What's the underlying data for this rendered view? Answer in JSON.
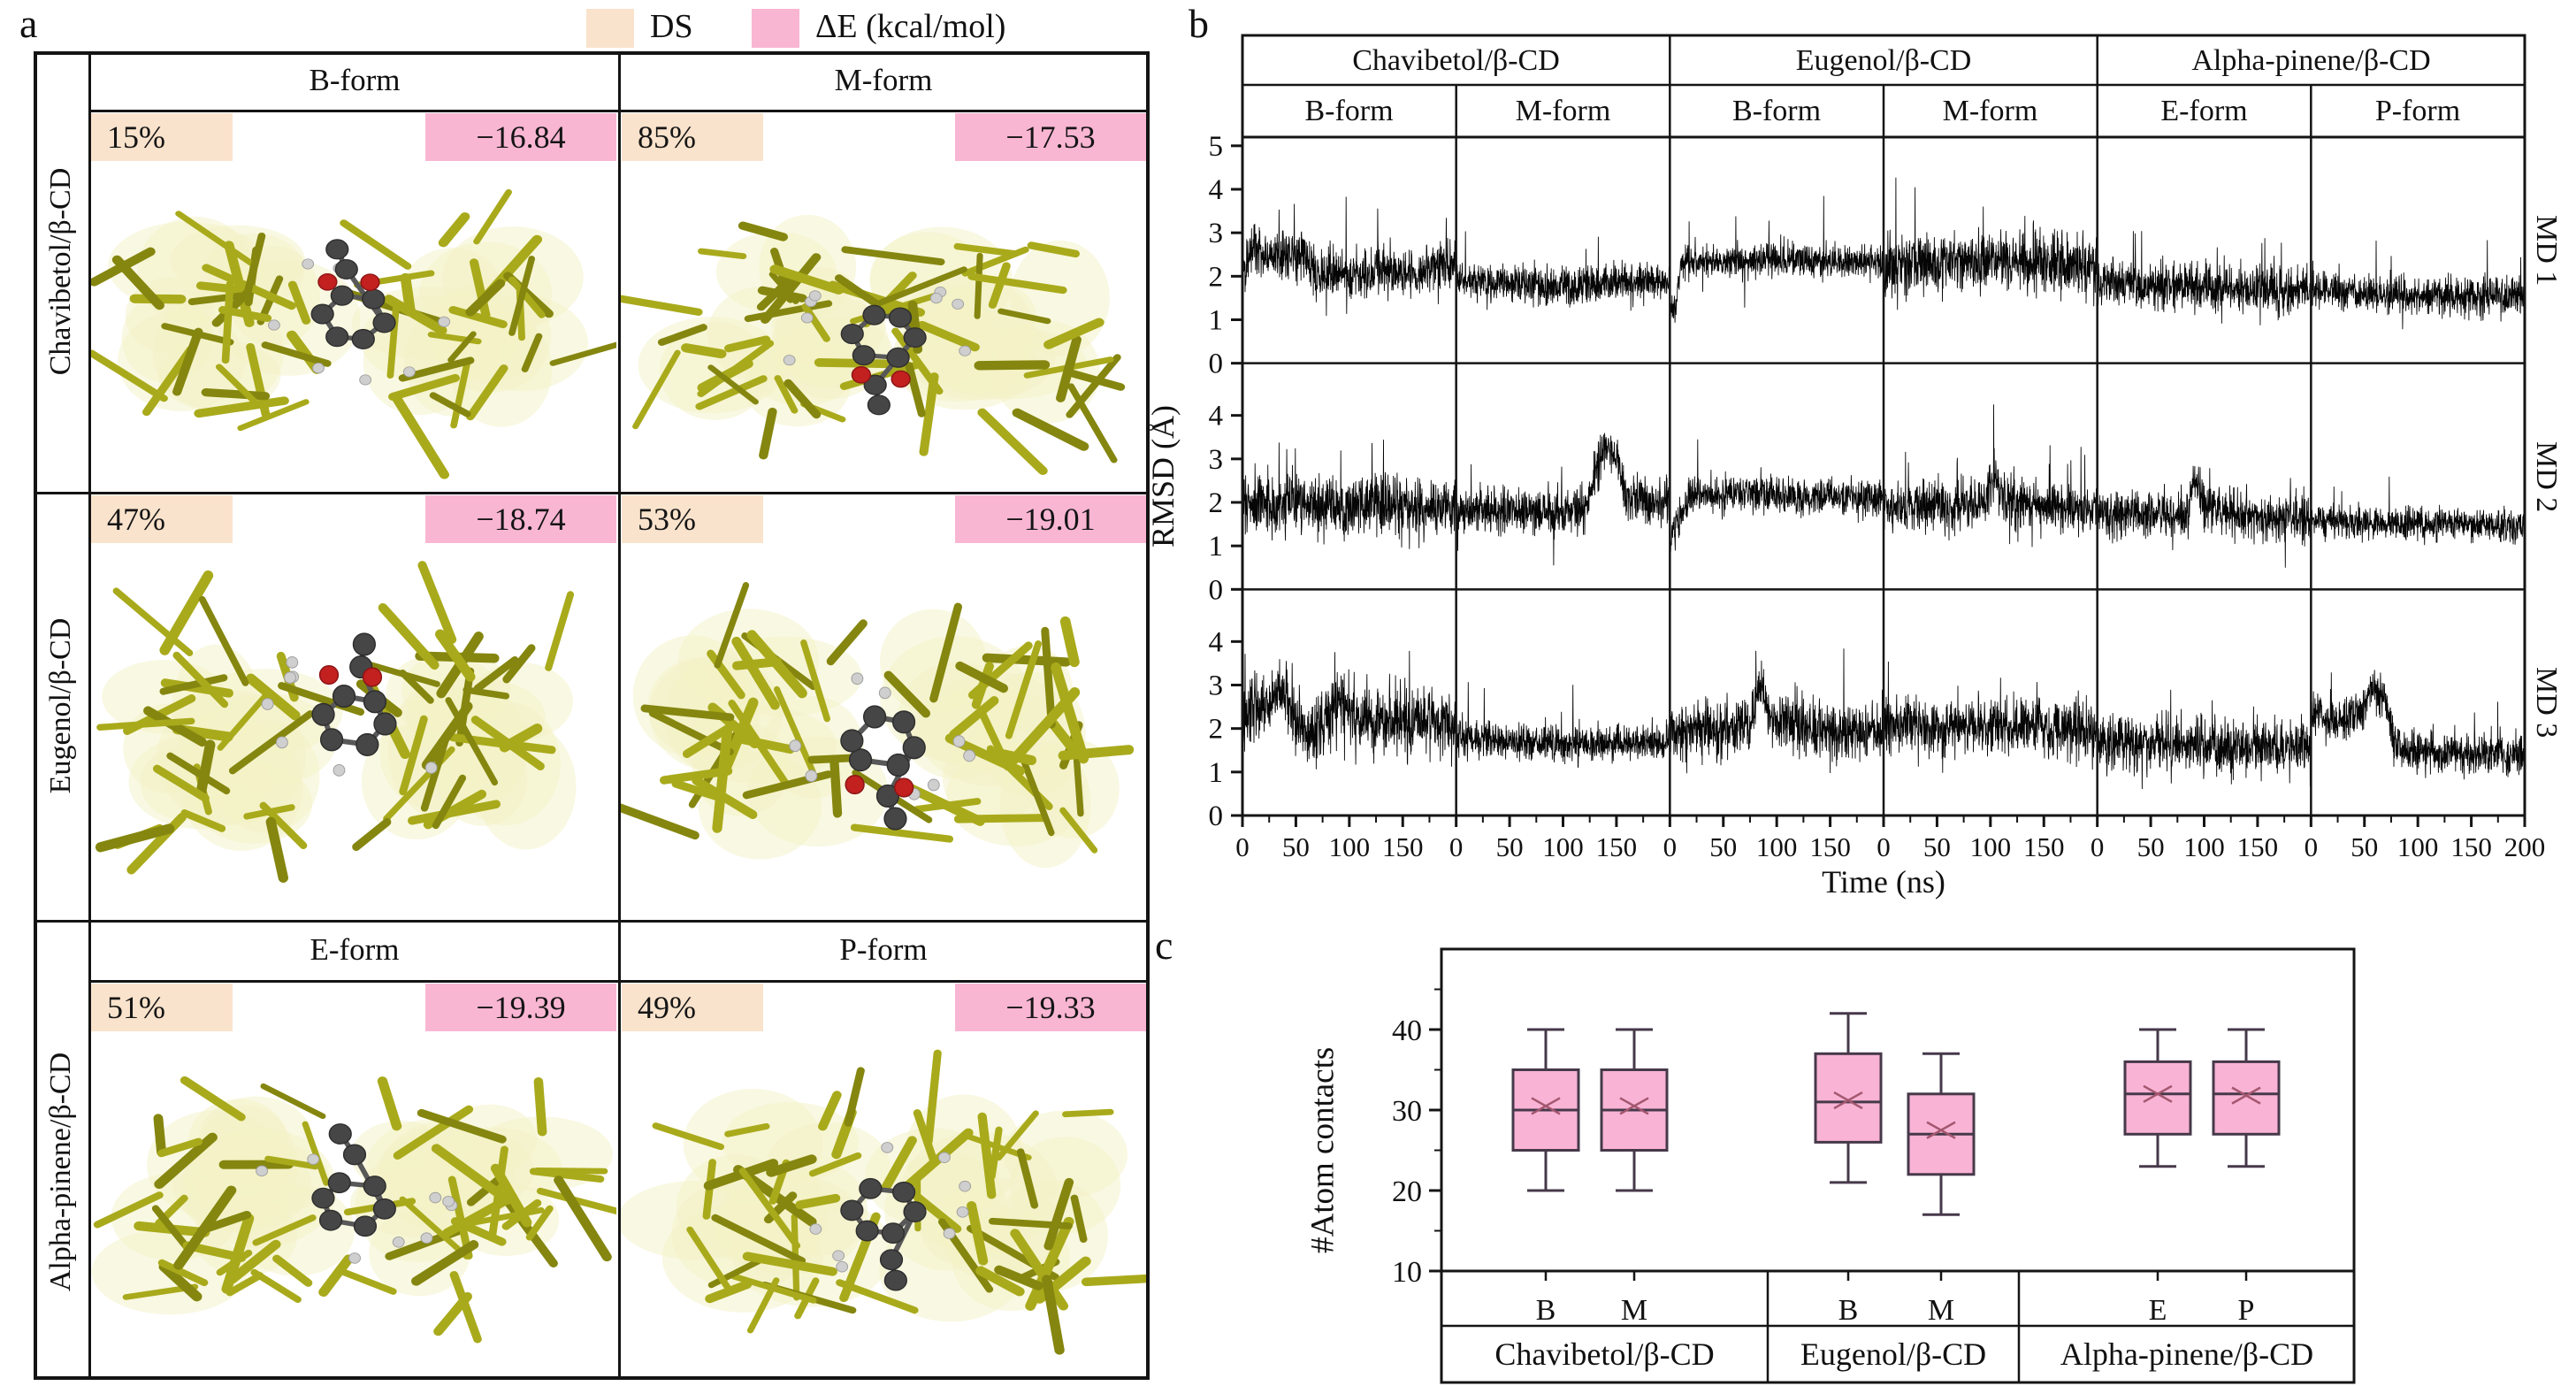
{
  "figure": {
    "panel_a_label": "a",
    "panel_b_label": "b",
    "panel_c_label": "c"
  },
  "legend": {
    "ds_label": "DS",
    "de_label": "ΔE (kcal/mol)",
    "ds_color": "#fae3cc",
    "de_color": "#f9b6d3",
    "box_fill": "#f9b3d5",
    "box_edge": "#46394a",
    "mean_marker_color": "#a3576e"
  },
  "panel_a": {
    "form_headers_top": [
      "B-form",
      "M-form"
    ],
    "form_headers_bottom": [
      "E-form",
      "P-form"
    ],
    "rows": [
      {
        "complex": "Chavibetol/β-CD",
        "cells": [
          {
            "ds": "15%",
            "de": "−16.84"
          },
          {
            "ds": "85%",
            "de": "−17.53"
          }
        ]
      },
      {
        "complex": "Eugenol/β-CD",
        "cells": [
          {
            "ds": "47%",
            "de": "−18.74"
          },
          {
            "ds": "53%",
            "de": "−19.01"
          }
        ]
      },
      {
        "complex": "Alpha-pinene/β-CD",
        "cells": [
          {
            "ds": "51%",
            "de": "−19.39"
          },
          {
            "ds": "49%",
            "de": "−19.33"
          }
        ]
      }
    ]
  },
  "panel_b": {
    "groups": [
      "Chavibetol/β-CD",
      "Eugenol/β-CD",
      "Alpha-pinene/β-CD"
    ],
    "forms": [
      "B-form",
      "M-form",
      "B-form",
      "M-form",
      "E-form",
      "P-form"
    ],
    "md_labels": [
      "MD 1",
      "MD 2",
      "MD 3"
    ],
    "ylabel": "RMSD (Å)",
    "xlabel": "Time (ns)"
  },
  "panel_c": {
    "ylabel": "#Atom contacts"
  },
  "chart_data": [
    {
      "type": "line",
      "title": "RMSD of guest/β-CD complexes over MD simulations",
      "xlabel": "Time (ns)",
      "ylabel": "RMSD (Å)",
      "x_range": [
        0,
        200
      ],
      "x_ticks": [
        0,
        50,
        100,
        150
      ],
      "x_end_tick": 200,
      "x_minor_ticks": [
        25,
        75,
        125,
        175
      ],
      "y_range": [
        0,
        5
      ],
      "y_ticks_per_row": [
        [
          0,
          1,
          2,
          3,
          4,
          5
        ],
        [
          0,
          1,
          2,
          3,
          4
        ],
        [
          0,
          1,
          2,
          3,
          4
        ]
      ],
      "facet_rows": [
        "MD 1",
        "MD 2",
        "MD 3"
      ],
      "facet_column_groups": [
        "Chavibetol/β-CD",
        "Eugenol/β-CD",
        "Alpha-pinene/β-CD"
      ],
      "facet_column_forms": [
        "B-form",
        "M-form",
        "B-form",
        "M-form",
        "E-form",
        "P-form"
      ],
      "grid": false,
      "series_note": "noisy black traces; mean_profile = [time_ns, mean_rmsd] control points",
      "series": [
        {
          "row": "MD 1",
          "column": "Chavibetol B-form",
          "amp": 0.24,
          "spike": 0.012,
          "mean_profile": [
            [
              0,
              2.1
            ],
            [
              8,
              2.6
            ],
            [
              30,
              2.45
            ],
            [
              55,
              2.5
            ],
            [
              70,
              2.05
            ],
            [
              100,
              2.0
            ],
            [
              130,
              2.15
            ],
            [
              165,
              2.1
            ],
            [
              185,
              2.35
            ],
            [
              200,
              2.2
            ]
          ]
        },
        {
          "row": "MD 1",
          "column": "Chavibetol M-form",
          "amp": 0.19,
          "spike": 0.006,
          "mean_profile": [
            [
              0,
              1.9
            ],
            [
              40,
              1.85
            ],
            [
              100,
              1.8
            ],
            [
              160,
              1.9
            ],
            [
              200,
              1.85
            ]
          ]
        },
        {
          "row": "MD 1",
          "column": "Eugenol B-form",
          "amp": 0.16,
          "spike": 0.005,
          "mean_profile": [
            [
              0,
              1.1
            ],
            [
              6,
              1.3
            ],
            [
              10,
              2.3
            ],
            [
              60,
              2.35
            ],
            [
              120,
              2.4
            ],
            [
              200,
              2.3
            ]
          ]
        },
        {
          "row": "MD 1",
          "column": "Eugenol M-form",
          "amp": 0.3,
          "spike": 0.02,
          "mean_profile": [
            [
              0,
              2.2
            ],
            [
              30,
              2.35
            ],
            [
              60,
              2.3
            ],
            [
              90,
              2.4
            ],
            [
              120,
              2.3
            ],
            [
              150,
              2.35
            ],
            [
              200,
              2.25
            ]
          ]
        },
        {
          "row": "MD 1",
          "column": "Alpha-pinene E-form",
          "amp": 0.22,
          "spike": 0.015,
          "mean_profile": [
            [
              0,
              1.9
            ],
            [
              30,
              1.8
            ],
            [
              80,
              1.75
            ],
            [
              130,
              1.7
            ],
            [
              200,
              1.65
            ]
          ]
        },
        {
          "row": "MD 1",
          "column": "Alpha-pinene P-form",
          "amp": 0.18,
          "spike": 0.006,
          "mean_profile": [
            [
              0,
              1.7
            ],
            [
              50,
              1.6
            ],
            [
              120,
              1.55
            ],
            [
              200,
              1.55
            ]
          ]
        },
        {
          "row": "MD 2",
          "column": "Chavibetol B-form",
          "amp": 0.3,
          "spike": 0.02,
          "mean_profile": [
            [
              0,
              2.0
            ],
            [
              20,
              1.9
            ],
            [
              50,
              1.95
            ],
            [
              80,
              1.9
            ],
            [
              110,
              1.95
            ],
            [
              150,
              1.9
            ],
            [
              200,
              1.9
            ]
          ]
        },
        {
          "row": "MD 2",
          "column": "Chavibetol M-form",
          "amp": 0.22,
          "spike": 0.006,
          "mean_profile": [
            [
              0,
              1.85
            ],
            [
              100,
              1.8
            ],
            [
              120,
              1.85
            ],
            [
              128,
              2.6
            ],
            [
              138,
              3.2
            ],
            [
              150,
              3.15
            ],
            [
              158,
              2.2
            ],
            [
              170,
              2.05
            ],
            [
              200,
              2.0
            ]
          ]
        },
        {
          "row": "MD 2",
          "column": "Eugenol B-form",
          "amp": 0.18,
          "spike": 0.006,
          "mean_profile": [
            [
              0,
              1.2
            ],
            [
              8,
              1.6
            ],
            [
              18,
              2.15
            ],
            [
              80,
              2.2
            ],
            [
              140,
              2.15
            ],
            [
              200,
              2.1
            ]
          ]
        },
        {
          "row": "MD 2",
          "column": "Eugenol M-form",
          "amp": 0.25,
          "spike": 0.015,
          "mean_profile": [
            [
              0,
              1.9
            ],
            [
              60,
              1.85
            ],
            [
              95,
              2.0
            ],
            [
              105,
              2.6
            ],
            [
              112,
              2.0
            ],
            [
              150,
              1.9
            ],
            [
              200,
              1.85
            ]
          ]
        },
        {
          "row": "MD 2",
          "column": "Alpha-pinene E-form",
          "amp": 0.22,
          "spike": 0.01,
          "mean_profile": [
            [
              0,
              1.75
            ],
            [
              60,
              1.7
            ],
            [
              85,
              1.8
            ],
            [
              92,
              2.7
            ],
            [
              100,
              1.9
            ],
            [
              140,
              1.7
            ],
            [
              200,
              1.65
            ]
          ]
        },
        {
          "row": "MD 2",
          "column": "Alpha-pinene P-form",
          "amp": 0.16,
          "spike": 0.005,
          "mean_profile": [
            [
              0,
              1.6
            ],
            [
              60,
              1.5
            ],
            [
              130,
              1.5
            ],
            [
              200,
              1.45
            ]
          ]
        },
        {
          "row": "MD 3",
          "column": "Chavibetol B-form",
          "amp": 0.32,
          "spike": 0.02,
          "mean_profile": [
            [
              0,
              2.3
            ],
            [
              25,
              2.4
            ],
            [
              35,
              3.0
            ],
            [
              45,
              2.5
            ],
            [
              60,
              1.9
            ],
            [
              75,
              2.1
            ],
            [
              95,
              2.7
            ],
            [
              105,
              2.2
            ],
            [
              140,
              2.15
            ],
            [
              200,
              2.1
            ]
          ]
        },
        {
          "row": "MD 3",
          "column": "Chavibetol M-form",
          "amp": 0.18,
          "spike": 0.005,
          "mean_profile": [
            [
              0,
              1.8
            ],
            [
              60,
              1.7
            ],
            [
              130,
              1.65
            ],
            [
              200,
              1.7
            ]
          ]
        },
        {
          "row": "MD 3",
          "column": "Eugenol B-form",
          "amp": 0.28,
          "spike": 0.015,
          "mean_profile": [
            [
              0,
              1.9
            ],
            [
              40,
              1.95
            ],
            [
              75,
              2.1
            ],
            [
              85,
              3.0
            ],
            [
              95,
              2.2
            ],
            [
              130,
              1.95
            ],
            [
              200,
              1.9
            ]
          ]
        },
        {
          "row": "MD 3",
          "column": "Eugenol M-form",
          "amp": 0.28,
          "spike": 0.012,
          "mean_profile": [
            [
              0,
              2.1
            ],
            [
              50,
              2.0
            ],
            [
              100,
              2.05
            ],
            [
              150,
              2.0
            ],
            [
              200,
              1.95
            ]
          ]
        },
        {
          "row": "MD 3",
          "column": "Alpha-pinene E-form",
          "amp": 0.26,
          "spike": 0.012,
          "mean_profile": [
            [
              0,
              1.7
            ],
            [
              60,
              1.6
            ],
            [
              120,
              1.6
            ],
            [
              200,
              1.55
            ]
          ]
        },
        {
          "row": "MD 3",
          "column": "Alpha-pinene P-form",
          "amp": 0.2,
          "spike": 0.006,
          "mean_profile": [
            [
              0,
              2.3
            ],
            [
              30,
              2.2
            ],
            [
              48,
              2.4
            ],
            [
              58,
              2.9
            ],
            [
              68,
              2.7
            ],
            [
              78,
              1.8
            ],
            [
              90,
              1.5
            ],
            [
              140,
              1.45
            ],
            [
              200,
              1.4
            ]
          ]
        }
      ]
    },
    {
      "type": "box",
      "title": "#Atom contacts per complex form",
      "ylabel": "#Atom contacts",
      "y_range": [
        10,
        50
      ],
      "y_ticks": [
        10,
        20,
        30,
        40
      ],
      "y_minor_ticks": [
        15,
        25,
        35,
        45
      ],
      "groups": [
        "Chavibetol/β-CD",
        "Eugenol/β-CD",
        "Alpha-pinene/β-CD"
      ],
      "boxes": [
        {
          "group": "Chavibetol/β-CD",
          "label": "B",
          "whisker_low": 20,
          "q1": 25,
          "median": 30,
          "mean": 30.5,
          "q3": 35,
          "whisker_high": 40
        },
        {
          "group": "Chavibetol/β-CD",
          "label": "M",
          "whisker_low": 20,
          "q1": 25,
          "median": 30,
          "mean": 30.5,
          "q3": 35,
          "whisker_high": 40
        },
        {
          "group": "Eugenol/β-CD",
          "label": "B",
          "whisker_low": 21,
          "q1": 26,
          "median": 31,
          "mean": 31.2,
          "q3": 37,
          "whisker_high": 42
        },
        {
          "group": "Eugenol/β-CD",
          "label": "M",
          "whisker_low": 17,
          "q1": 22,
          "median": 27,
          "mean": 27.5,
          "q3": 32,
          "whisker_high": 37
        },
        {
          "group": "Alpha-pinene/β-CD",
          "label": "E",
          "whisker_low": 23,
          "q1": 27,
          "median": 32,
          "mean": 32,
          "q3": 36,
          "whisker_high": 40
        },
        {
          "group": "Alpha-pinene/β-CD",
          "label": "P",
          "whisker_low": 23,
          "q1": 27,
          "median": 32,
          "mean": 31.8,
          "q3": 36,
          "whisker_high": 40
        }
      ]
    }
  ]
}
